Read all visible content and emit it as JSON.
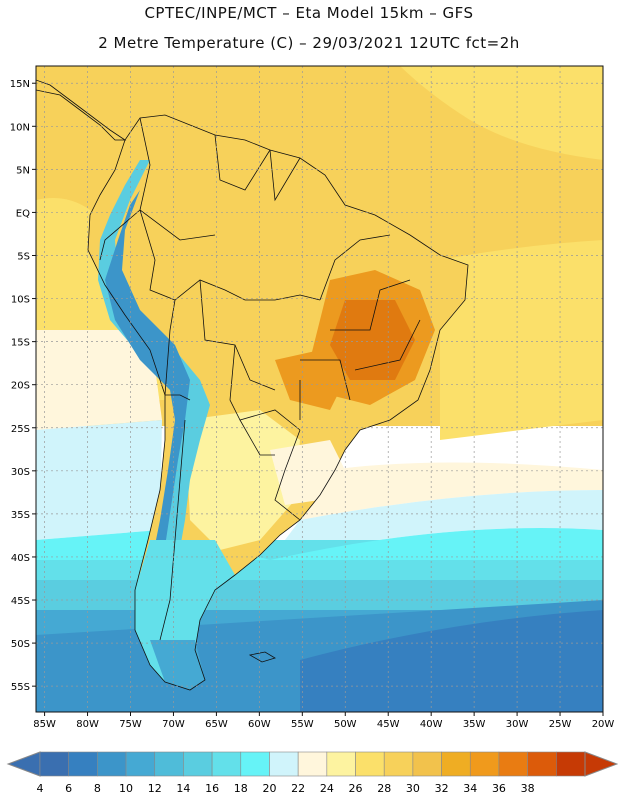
{
  "header": {
    "line1": "CPTEC/INPE/MCT –  Eta Model 15km – GFS",
    "line2": "2 Metre Temperature (C) – 29/03/2021 12UTC fct=2h"
  },
  "map": {
    "lat_labels": [
      "15N",
      "10N",
      "5N",
      "EQ",
      "5S",
      "10S",
      "15S",
      "20S",
      "25S",
      "30S",
      "35S",
      "40S",
      "45S",
      "50S",
      "55S"
    ],
    "lon_labels": [
      "85W",
      "80W",
      "75W",
      "70W",
      "65W",
      "60W",
      "55W",
      "50W",
      "45W",
      "40W",
      "35W",
      "30W",
      "25W",
      "20W"
    ],
    "lat_range": [
      -58,
      17
    ],
    "lon_range": [
      -86,
      -20
    ]
  },
  "legend": {
    "levels": [
      "4",
      "6",
      "8",
      "10",
      "12",
      "14",
      "16",
      "18",
      "20",
      "22",
      "24",
      "26",
      "28",
      "30",
      "32",
      "34",
      "36",
      "38"
    ],
    "colors": [
      "#3a6fb0",
      "#3680c0",
      "#3c95c9",
      "#45a9d3",
      "#4fbcd9",
      "#5acde0",
      "#63e0ea",
      "#66f3f7",
      "#d0f4fb",
      "#fff6dc",
      "#fdf3a0",
      "#fbe06a",
      "#f7d15a",
      "#f2c24c",
      "#efad23",
      "#f09a1c",
      "#e97c12",
      "#dc5b0a",
      "#c63a05"
    ],
    "under_color": "#3a6fb0",
    "over_color": "#c63a05"
  }
}
